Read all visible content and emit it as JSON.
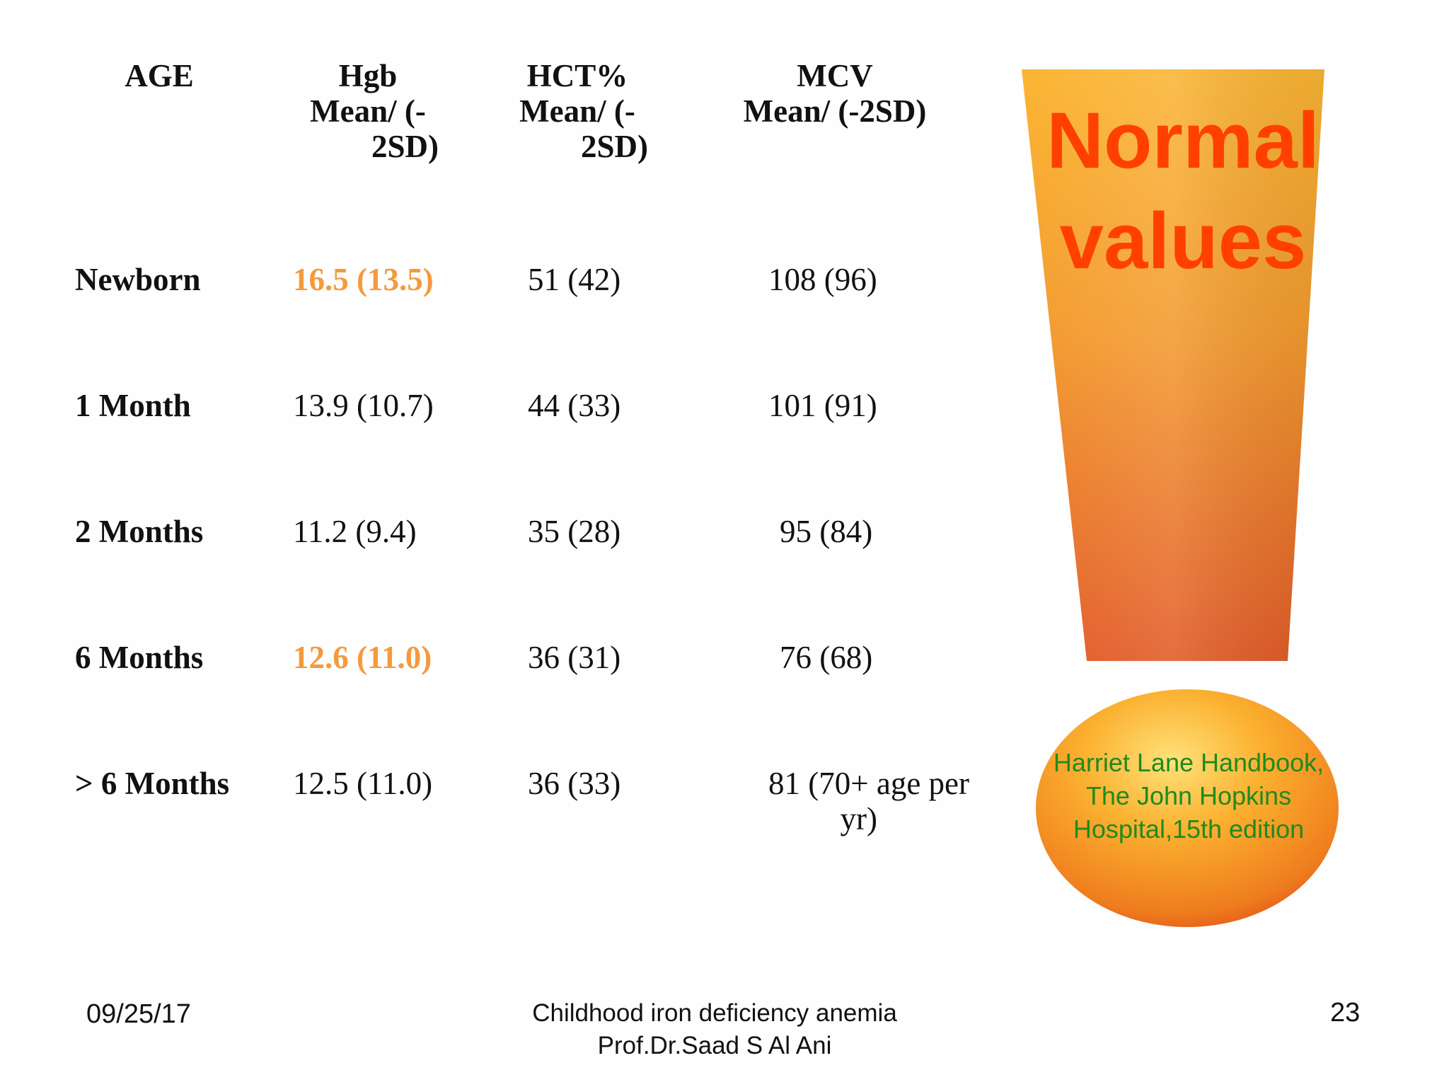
{
  "table": {
    "headers": {
      "age": "AGE",
      "hgb": [
        "Hgb",
        "Mean/ (-",
        "2SD)"
      ],
      "hct": [
        "HCT%",
        "Mean/ (-",
        "2SD)"
      ],
      "mcv": [
        "MCV",
        "Mean/ (-2SD)"
      ]
    },
    "rows": [
      {
        "age": "Newborn",
        "hgb": "16.5 (13.5)",
        "hct": "51 (42)",
        "mcv": "108 (96)",
        "hgb_highlight": true
      },
      {
        "age": "1 Month",
        "hgb": "13.9 (10.7)",
        "hct": "44 (33)",
        "mcv": "101 (91)",
        "hgb_highlight": false
      },
      {
        "age": "2 Months",
        "hgb": "11.2 (9.4)",
        "hct": "35 (28)",
        "mcv": "95 (84)",
        "hgb_highlight": false
      },
      {
        "age": "6 Months",
        "hgb": "12.6 (11.0)",
        "hct": "36 (31)",
        "mcv": "76 (68)",
        "hgb_highlight": true
      },
      {
        "age": "> 6 Months",
        "hgb": "12.5 (11.0)",
        "hct": "36 (33)",
        "mcv": [
          "81 (70+ age per",
          "yr)"
        ],
        "hgb_highlight": false
      }
    ]
  },
  "graphic": {
    "title": [
      "Normal",
      "values"
    ],
    "citation": [
      "Harriet Lane Handbook,",
      "The John Hopkins",
      "Hospital,15th edition"
    ]
  },
  "footer": {
    "date": "09/25/17",
    "center": [
      "Childhood iron deficiency anemia",
      "Prof.Dr.Saad S Al Ani"
    ],
    "page_number": "23"
  },
  "colors": {
    "highlight": "#f59a3c",
    "title_red": "#ff4000",
    "citation_green": "#1f8a1f"
  }
}
